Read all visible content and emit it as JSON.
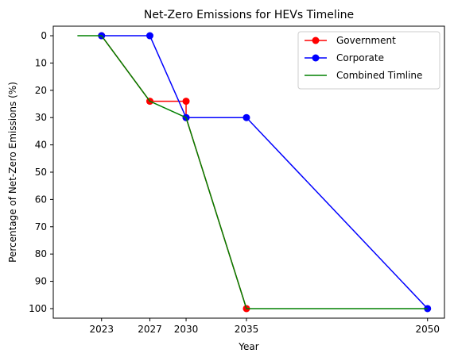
{
  "chart_data": {
    "type": "line",
    "title": "Net-Zero Emissions for HEVs Timeline",
    "xlabel": "Year",
    "ylabel": "Percentage of Net-Zero Emissions (%)",
    "x_ticks": [
      2023,
      2027,
      2030,
      2035,
      2050
    ],
    "y_ticks": [
      0,
      10,
      20,
      30,
      40,
      50,
      60,
      70,
      80,
      90,
      100
    ],
    "xlim": [
      2019,
      2051.4
    ],
    "ylim": [
      103.5,
      -3.5
    ],
    "y_inverted": true,
    "legend_position": "upper-right",
    "grid": false,
    "series": [
      {
        "name": "Government",
        "color": "#ff0000",
        "marker": "circle",
        "points": [
          {
            "x": 2023,
            "y": 0
          },
          {
            "x": 2027,
            "y": 24
          },
          {
            "x": 2030,
            "y": 24
          },
          {
            "x": 2030,
            "y": 30
          },
          {
            "x": 2035,
            "y": 100
          }
        ]
      },
      {
        "name": "Corporate",
        "color": "#0000ff",
        "marker": "circle",
        "points": [
          {
            "x": 2023,
            "y": 0
          },
          {
            "x": 2027,
            "y": 0
          },
          {
            "x": 2030,
            "y": 30
          },
          {
            "x": 2035,
            "y": 30
          },
          {
            "x": 2050,
            "y": 100
          }
        ]
      },
      {
        "name": "Combined Timline",
        "color": "#008000",
        "marker": "none",
        "points": [
          {
            "x": 2021,
            "y": 0
          },
          {
            "x": 2023,
            "y": 0
          },
          {
            "x": 2027,
            "y": 24
          },
          {
            "x": 2030,
            "y": 30
          },
          {
            "x": 2035,
            "y": 100
          },
          {
            "x": 2050,
            "y": 100
          }
        ]
      }
    ]
  }
}
